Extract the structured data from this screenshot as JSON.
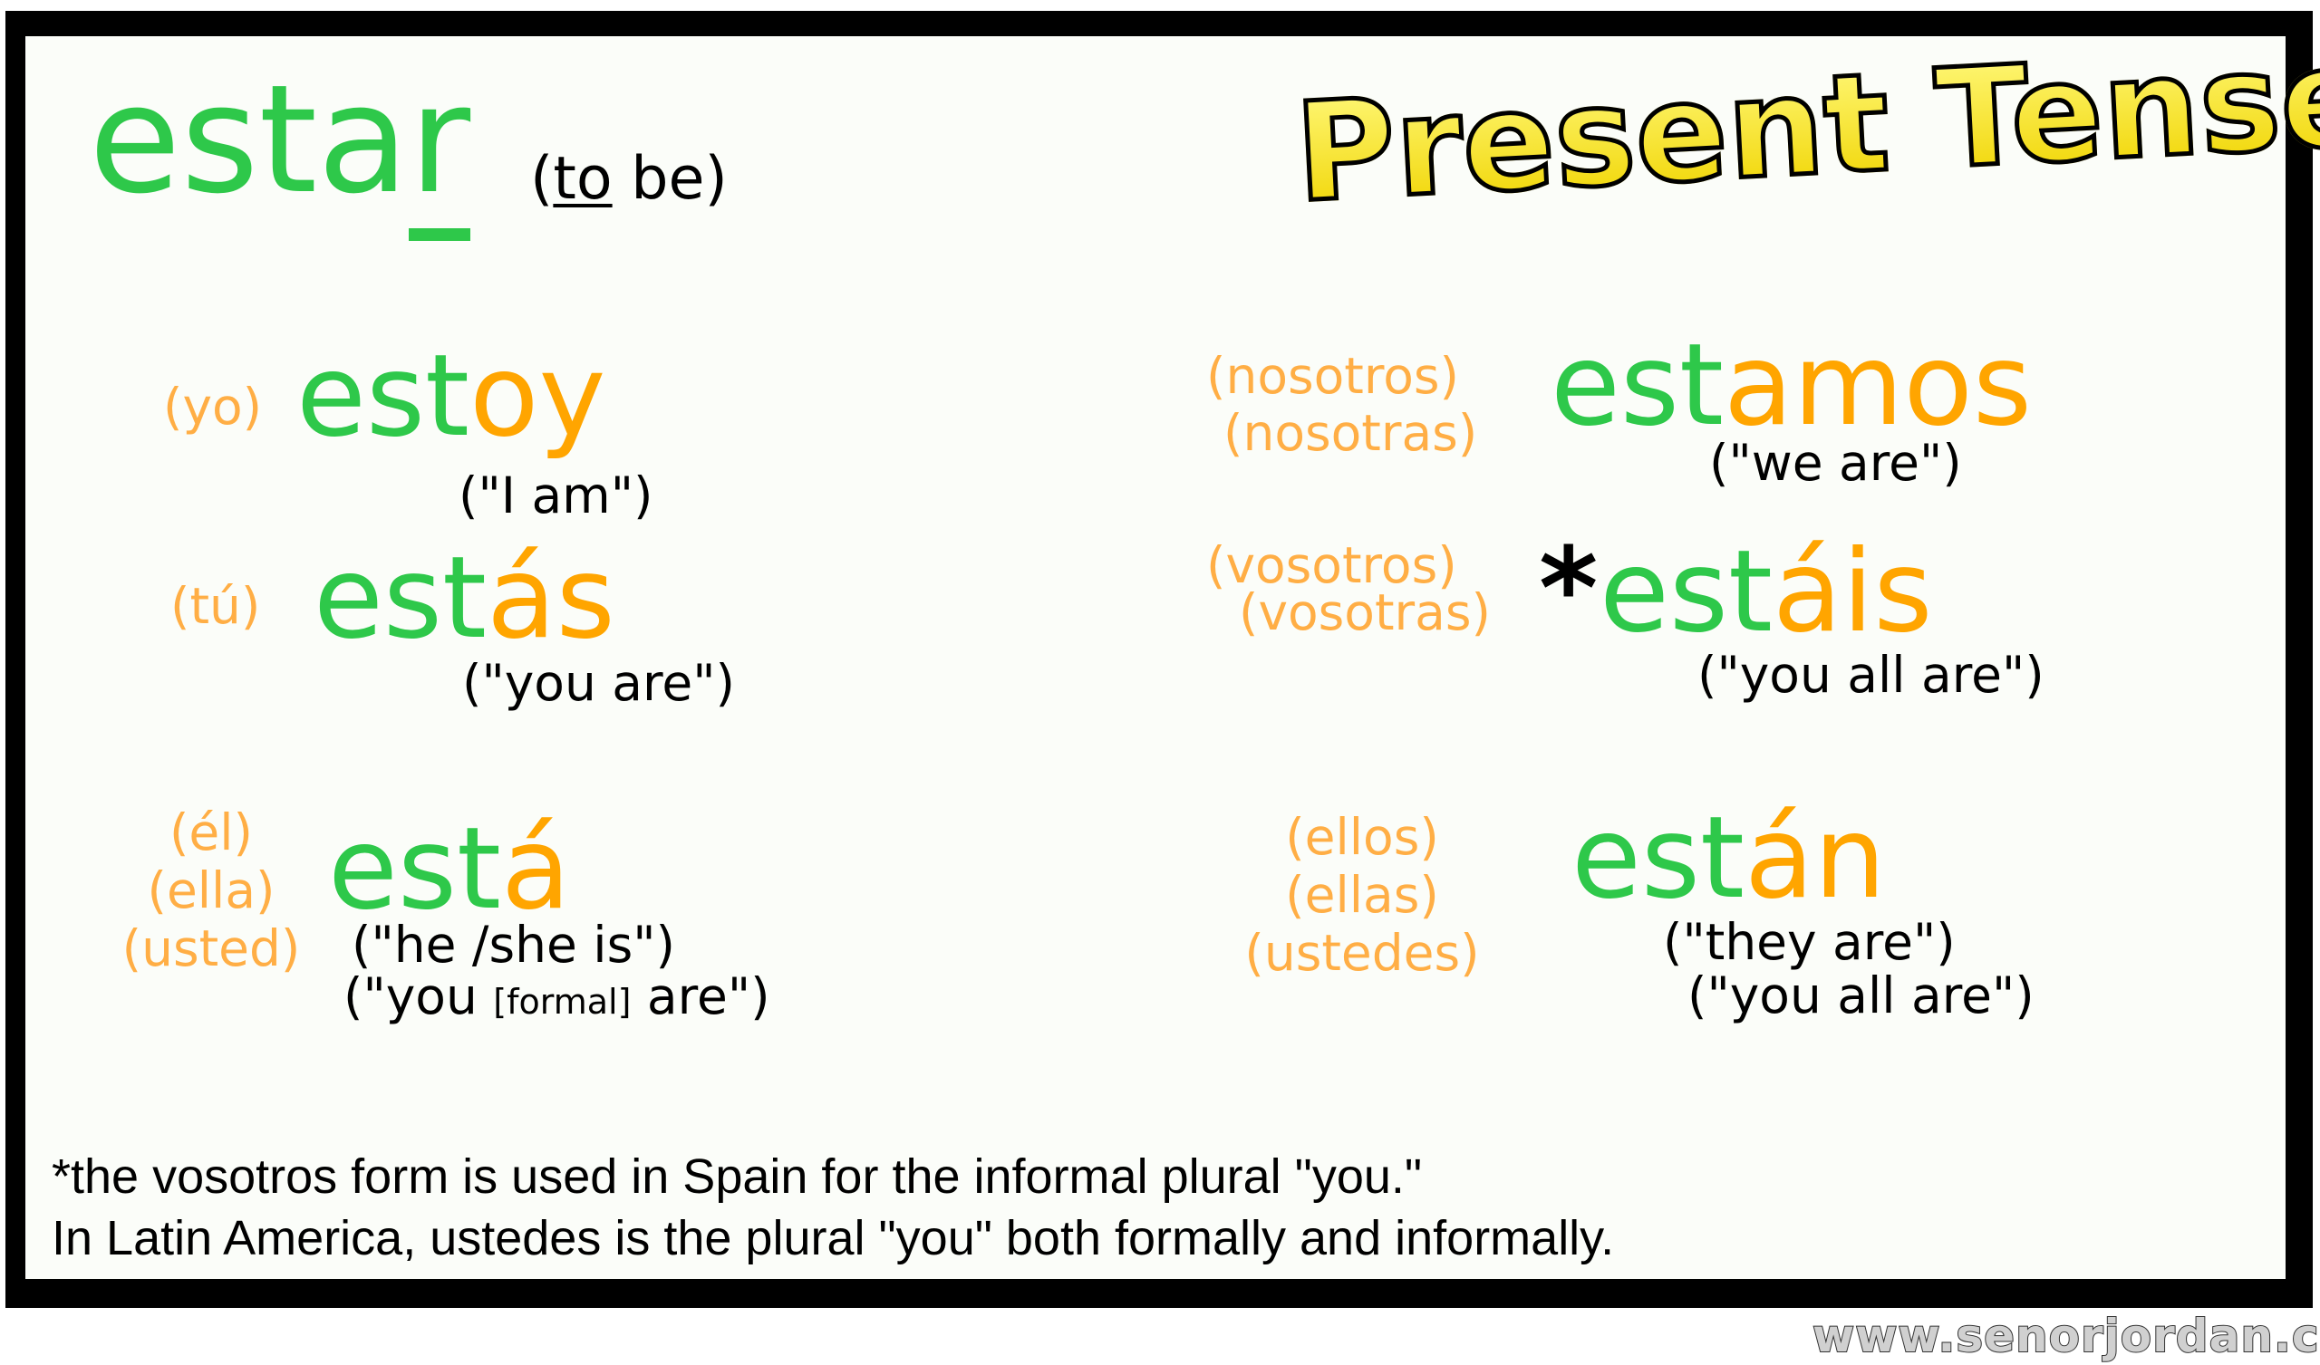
{
  "title": {
    "stem": "esta",
    "last": "r",
    "meaning_open": "(",
    "meaning_to": "to",
    "meaning_rest": " be)"
  },
  "heading": "Present Tense",
  "colors": {
    "stem": "#2ec84a",
    "ending": "#ffa500",
    "pronoun": "#ffae45",
    "heading": "#f7e21a"
  },
  "conjugations": {
    "yo": {
      "pronouns": [
        "(yo)"
      ],
      "stem": "est",
      "ending": "oy",
      "translation": "(\"I am\")"
    },
    "tu": {
      "pronouns": [
        "(tú)"
      ],
      "stem": "est",
      "ending": "ás",
      "translation": "(\"you are\")"
    },
    "el": {
      "pronouns": [
        "(él)",
        "(ella)",
        "(usted)"
      ],
      "stem": "est",
      "ending": "á",
      "translation": "(\"he /she is\")",
      "translation2_a": "(\"you ",
      "translation2_b": "[formal]",
      "translation2_c": " are\")"
    },
    "nosotros": {
      "pronouns": [
        "(nosotros)",
        "(nosotras)"
      ],
      "stem": "est",
      "ending": "amos",
      "translation": "(\"we are\")"
    },
    "vosotros": {
      "pronouns": [
        "(vosotros)",
        "(vosotras)"
      ],
      "asterisk": "*",
      "stem": "est",
      "ending": "áis",
      "translation": "(\"you all are\")"
    },
    "ellos": {
      "pronouns": [
        "(ellos)",
        "(ellas)",
        "(ustedes)"
      ],
      "stem": "est",
      "ending": "án",
      "translation": "(\"they are\")",
      "translation2": "(\"you all are\")"
    }
  },
  "footnote": {
    "line1": "*the vosotros form is used in Spain for the informal plural \"you.\"",
    "line2": "In Latin America, ustedes is the plural \"you\" both formally and informally."
  },
  "watermark": "www.senorjordan.com"
}
